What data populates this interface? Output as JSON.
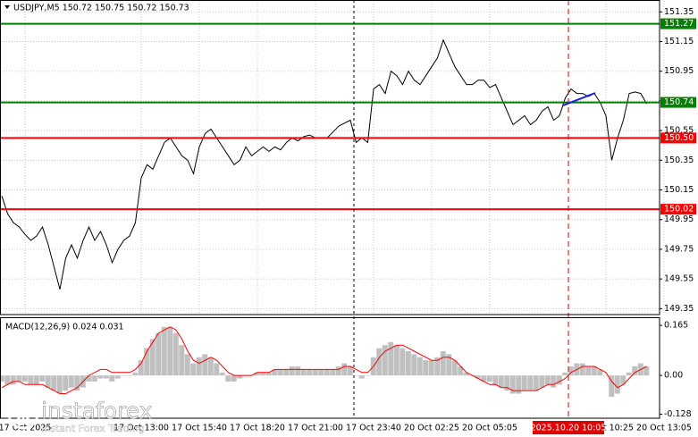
{
  "chart_data": [
    {
      "type": "line",
      "title": "USDJPY,M5  150.72 150.75 150.72 150.73",
      "color": "#000000",
      "categories": [
        null,
        null,
        null,
        null,
        "17 Oct 2025",
        null,
        null,
        null,
        null,
        null,
        null,
        null,
        null,
        null,
        null,
        null,
        null,
        null,
        null,
        null,
        null,
        null,
        null,
        null,
        "17 Oct 13:00",
        null,
        null,
        null,
        null,
        null,
        null,
        null,
        null,
        null,
        "17 Oct 15:40",
        null,
        null,
        null,
        null,
        null,
        null,
        null,
        null,
        null,
        "17 Oct 18:20",
        null,
        null,
        null,
        null,
        null,
        null,
        null,
        null,
        null,
        "17 Oct 21:00",
        null,
        null,
        null,
        null,
        null,
        null,
        null,
        null,
        null,
        "17 Oct 23:40",
        null,
        null,
        null,
        null,
        null,
        null,
        null,
        null,
        null,
        "20 Oct 02:25",
        null,
        null,
        null,
        null,
        null,
        null,
        null,
        null,
        null,
        "20 Oct 05:05",
        null,
        null,
        null,
        null,
        null,
        null,
        null,
        null,
        null,
        null,
        null,
        null,
        null,
        null,
        null,
        null,
        null,
        null,
        null,
        "20 Oct 10:25",
        null,
        null,
        null,
        null,
        null,
        null,
        null,
        null,
        null,
        "20 Oct 13:05"
      ],
      "values": [
        150.11,
        149.99,
        149.93,
        149.9,
        149.85,
        149.81,
        149.84,
        149.9,
        149.78,
        149.63,
        149.48,
        149.69,
        149.78,
        149.69,
        149.81,
        149.9,
        149.81,
        149.87,
        149.78,
        149.66,
        149.75,
        149.81,
        149.84,
        149.93,
        150.23,
        150.32,
        150.29,
        150.38,
        150.47,
        150.5,
        150.44,
        150.38,
        150.35,
        150.26,
        150.44,
        150.53,
        150.56,
        150.5,
        150.44,
        150.38,
        150.32,
        150.35,
        150.44,
        150.38,
        150.41,
        150.44,
        150.41,
        150.44,
        150.42,
        150.47,
        150.5,
        150.48,
        150.51,
        150.52,
        150.5,
        150.5,
        150.5,
        150.54,
        150.58,
        150.6,
        150.62,
        150.47,
        150.5,
        150.47,
        150.83,
        150.86,
        150.8,
        150.95,
        150.92,
        150.86,
        150.95,
        150.89,
        150.86,
        150.92,
        150.98,
        151.04,
        151.16,
        151.07,
        150.98,
        150.92,
        150.86,
        150.86,
        150.89,
        150.89,
        150.84,
        150.86,
        150.77,
        150.68,
        150.59,
        150.62,
        150.65,
        150.59,
        150.62,
        150.68,
        150.71,
        150.62,
        150.65,
        150.77,
        150.83,
        150.8,
        150.8,
        150.78,
        150.8,
        150.74,
        150.65,
        150.35,
        150.5,
        150.62,
        150.8,
        150.81,
        150.8,
        150.73,
        null,
        null,
        null
      ],
      "ylim": [
        149.31,
        151.43
      ],
      "yticks": [
        151.35,
        151.15,
        150.95,
        150.75,
        150.55,
        150.35,
        150.15,
        149.95,
        149.75,
        149.55,
        149.35
      ],
      "grid": true,
      "levels": [
        {
          "value": 151.27,
          "label": "151.27",
          "color": "#008000"
        },
        {
          "value": 150.74,
          "label": "150.74",
          "color": "#008000"
        },
        {
          "value": 150.5,
          "label": "150.50",
          "color": "#ff0000"
        },
        {
          "value": 150.02,
          "label": "150.02",
          "color": "#ff0000"
        }
      ],
      "cursor_label": "2025.10.20 10:05"
    },
    {
      "type": "macd",
      "title": "MACD(12,26,9) 0.024 0.031",
      "histogram": {
        "color": "#c0c0c0",
        "values": [
          -0.02,
          -0.03,
          -0.03,
          -0.02,
          -0.02,
          -0.03,
          -0.03,
          -0.02,
          -0.04,
          -0.05,
          -0.06,
          -0.05,
          -0.04,
          -0.05,
          -0.04,
          -0.02,
          -0.02,
          -0.01,
          -0.01,
          -0.02,
          -0.01,
          0.0,
          0.0,
          0.01,
          0.05,
          0.09,
          0.12,
          0.14,
          0.16,
          0.16,
          0.14,
          0.1,
          0.07,
          0.04,
          0.06,
          0.07,
          0.06,
          0.04,
          0.01,
          -0.02,
          -0.02,
          -0.01,
          0.0,
          0.0,
          0.01,
          0.01,
          0.01,
          0.02,
          0.02,
          0.02,
          0.03,
          0.03,
          0.02,
          0.02,
          0.02,
          0.02,
          0.02,
          0.02,
          0.03,
          0.04,
          0.03,
          0.0,
          -0.01,
          0.0,
          0.06,
          0.09,
          0.1,
          0.11,
          0.1,
          0.09,
          0.08,
          0.07,
          0.06,
          0.05,
          0.05,
          0.06,
          0.08,
          0.07,
          0.05,
          0.03,
          0.01,
          0.0,
          -0.01,
          -0.02,
          -0.02,
          -0.03,
          -0.04,
          -0.05,
          -0.06,
          -0.06,
          -0.05,
          -0.05,
          -0.05,
          -0.04,
          -0.03,
          -0.04,
          -0.03,
          0.01,
          0.03,
          0.04,
          0.04,
          0.03,
          0.03,
          0.02,
          0.0,
          -0.07,
          -0.06,
          -0.03,
          0.01,
          0.03,
          0.04,
          0.03,
          null,
          null,
          null
        ]
      },
      "signal": {
        "color": "#ff0000",
        "values": [
          -0.04,
          -0.03,
          -0.02,
          -0.02,
          -0.03,
          -0.03,
          -0.03,
          -0.03,
          -0.04,
          -0.05,
          -0.06,
          -0.06,
          -0.05,
          -0.04,
          -0.02,
          0.0,
          0.01,
          0.02,
          0.02,
          0.01,
          0.01,
          0.01,
          0.01,
          0.02,
          0.04,
          0.08,
          0.11,
          0.14,
          0.15,
          0.16,
          0.15,
          0.12,
          0.08,
          0.05,
          0.04,
          0.05,
          0.06,
          0.05,
          0.03,
          0.01,
          0.0,
          0.0,
          0.0,
          0.0,
          0.01,
          0.01,
          0.01,
          0.02,
          0.02,
          0.02,
          0.02,
          0.02,
          0.02,
          0.02,
          0.02,
          0.02,
          0.02,
          0.02,
          0.02,
          0.03,
          0.03,
          0.02,
          0.01,
          0.01,
          0.03,
          0.06,
          0.08,
          0.09,
          0.1,
          0.1,
          0.09,
          0.08,
          0.07,
          0.06,
          0.05,
          0.05,
          0.06,
          0.06,
          0.05,
          0.03,
          0.01,
          0.0,
          -0.01,
          -0.02,
          -0.03,
          -0.03,
          -0.04,
          -0.04,
          -0.05,
          -0.05,
          -0.05,
          -0.05,
          -0.05,
          -0.04,
          -0.03,
          -0.03,
          -0.02,
          -0.01,
          0.01,
          0.02,
          0.03,
          0.03,
          0.03,
          0.02,
          0.01,
          -0.02,
          -0.04,
          -0.03,
          -0.01,
          0.01,
          0.02,
          0.03,
          null,
          null,
          null
        ]
      },
      "ylim": [
        -0.141,
        0.189
      ],
      "yticks": [
        0.165,
        {
          "value": 0,
          "label": "0.00"
        },
        -0.128
      ]
    }
  ],
  "watermark": {
    "brand": "instaforex",
    "tagline": "Instant Forex Trading"
  }
}
